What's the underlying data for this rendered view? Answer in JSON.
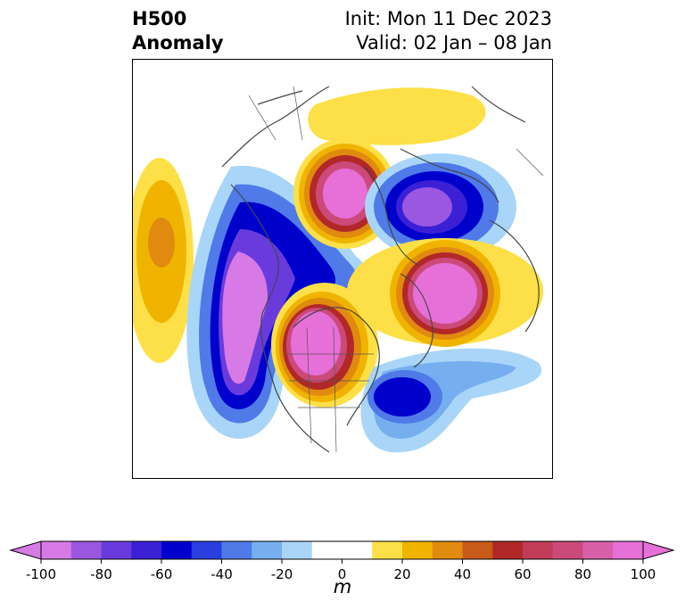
{
  "title": {
    "left_line1": "H500",
    "left_line2": "Anomaly",
    "right_line1": "Init: Mon 11 Dec 2023",
    "right_line2": "Valid: 02 Jan – 08 Jan"
  },
  "colorbar": {
    "label": "m",
    "ticks": [
      "-100",
      "-80",
      "-60",
      "-40",
      "-20",
      "0",
      "20",
      "40",
      "60",
      "80",
      "100"
    ],
    "extend": "both",
    "colors": [
      "#d77ae6",
      "#9a57e0",
      "#6a3bdc",
      "#3b20d6",
      "#0000cc",
      "#2b3ee0",
      "#4f7ae8",
      "#76aef0",
      "#a9d6f8",
      "#ffffff",
      "#ffffff",
      "#fde047",
      "#f0b400",
      "#e08a10",
      "#c85a1a",
      "#b22828",
      "#c23c5a",
      "#cc4a7a",
      "#d860a8",
      "#e670d8"
    ],
    "neg_end_color": "#d77ae6",
    "pos_end_color": "#e670d8"
  },
  "map": {
    "projection": "polar-stereographic",
    "variable": "500 hPa geopotential height anomaly",
    "features": [
      {
        "name": "troughs",
        "sign": "negative"
      },
      {
        "name": "ridges",
        "sign": "positive"
      }
    ]
  }
}
